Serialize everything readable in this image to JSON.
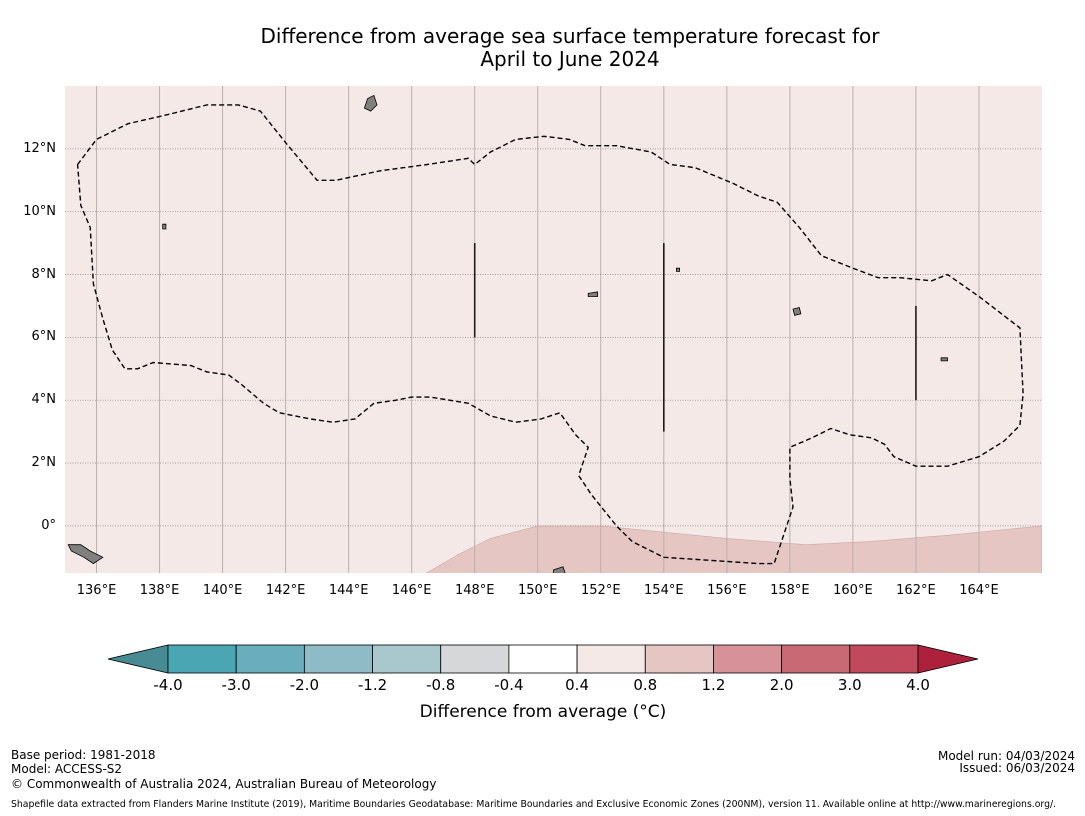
{
  "title_line1": "Difference from average sea surface temperature forecast for",
  "title_line2": "April to June 2024",
  "map": {
    "background_color": "#f5e9e8",
    "anomaly_band_color": "#e6c6c3",
    "land_color": "#808080",
    "lon_range": [
      135,
      166
    ],
    "lat_range": [
      -1.5,
      14
    ],
    "x_ticks": [
      {
        "lon": 136,
        "label": "136°E"
      },
      {
        "lon": 138,
        "label": "138°E"
      },
      {
        "lon": 140,
        "label": "140°E"
      },
      {
        "lon": 142,
        "label": "142°E"
      },
      {
        "lon": 144,
        "label": "144°E"
      },
      {
        "lon": 146,
        "label": "146°E"
      },
      {
        "lon": 148,
        "label": "148°E"
      },
      {
        "lon": 150,
        "label": "150°E"
      },
      {
        "lon": 152,
        "label": "152°E"
      },
      {
        "lon": 154,
        "label": "154°E"
      },
      {
        "lon": 156,
        "label": "156°E"
      },
      {
        "lon": 158,
        "label": "158°E"
      },
      {
        "lon": 160,
        "label": "160°E"
      },
      {
        "lon": 162,
        "label": "162°E"
      },
      {
        "lon": 164,
        "label": "164°E"
      }
    ],
    "y_ticks": [
      {
        "lat": 12,
        "label": "12°N"
      },
      {
        "lat": 10,
        "label": "10°N"
      },
      {
        "lat": 8,
        "label": "8°N"
      },
      {
        "lat": 6,
        "label": "6°N"
      },
      {
        "lat": 4,
        "label": "4°N"
      },
      {
        "lat": 2,
        "label": "2°N"
      },
      {
        "lat": 0,
        "label": "0°"
      }
    ],
    "eez_boundary_lonlat": [
      [
        135.4,
        11.5
      ],
      [
        136.0,
        12.3
      ],
      [
        137.0,
        12.8
      ],
      [
        138.3,
        13.1
      ],
      [
        139.5,
        13.4
      ],
      [
        140.5,
        13.4
      ],
      [
        141.2,
        13.2
      ],
      [
        142.0,
        12.2
      ],
      [
        143.0,
        11.0
      ],
      [
        143.6,
        11.0
      ],
      [
        145.0,
        11.3
      ],
      [
        146.5,
        11.5
      ],
      [
        147.8,
        11.7
      ],
      [
        148.0,
        11.5
      ],
      [
        148.5,
        11.9
      ],
      [
        149.3,
        12.3
      ],
      [
        150.2,
        12.4
      ],
      [
        151.0,
        12.3
      ],
      [
        151.5,
        12.1
      ],
      [
        152.5,
        12.1
      ],
      [
        153.6,
        11.9
      ],
      [
        154.2,
        11.5
      ],
      [
        155.0,
        11.4
      ],
      [
        156.2,
        10.9
      ],
      [
        157.0,
        10.5
      ],
      [
        157.6,
        10.3
      ],
      [
        158.3,
        9.5
      ],
      [
        159.0,
        8.6
      ],
      [
        160.0,
        8.2
      ],
      [
        160.8,
        7.9
      ],
      [
        161.5,
        7.9
      ],
      [
        162.5,
        7.8
      ],
      [
        163.0,
        8.0
      ],
      [
        164.0,
        7.3
      ],
      [
        165.3,
        6.3
      ],
      [
        165.4,
        4.2
      ],
      [
        165.3,
        3.2
      ],
      [
        164.8,
        2.7
      ],
      [
        164.0,
        2.2
      ],
      [
        163.0,
        1.9
      ],
      [
        162.0,
        1.9
      ],
      [
        161.3,
        2.2
      ],
      [
        161.0,
        2.6
      ],
      [
        160.6,
        2.8
      ],
      [
        159.9,
        2.9
      ],
      [
        159.3,
        3.1
      ],
      [
        158.7,
        2.8
      ],
      [
        158.0,
        2.5
      ],
      [
        158.0,
        1.5
      ],
      [
        158.1,
        0.6
      ],
      [
        157.5,
        -1.2
      ],
      [
        157.0,
        -1.2
      ],
      [
        155.5,
        -1.1
      ],
      [
        154.0,
        -1.0
      ],
      [
        153.0,
        -0.5
      ],
      [
        152.5,
        0.0
      ],
      [
        151.7,
        1.0
      ],
      [
        151.3,
        1.6
      ],
      [
        151.6,
        2.5
      ],
      [
        151.2,
        2.9
      ],
      [
        150.7,
        3.6
      ],
      [
        150.1,
        3.4
      ],
      [
        149.3,
        3.3
      ],
      [
        148.5,
        3.5
      ],
      [
        147.8,
        3.9
      ],
      [
        146.6,
        4.1
      ],
      [
        146.0,
        4.1
      ],
      [
        145.5,
        4.0
      ],
      [
        144.8,
        3.9
      ],
      [
        144.2,
        3.4
      ],
      [
        143.5,
        3.3
      ],
      [
        142.8,
        3.4
      ],
      [
        141.8,
        3.6
      ],
      [
        141.3,
        3.9
      ],
      [
        140.6,
        4.5
      ],
      [
        140.2,
        4.8
      ],
      [
        139.5,
        4.9
      ],
      [
        139.0,
        5.1
      ],
      [
        137.8,
        5.2
      ],
      [
        137.3,
        5.0
      ],
      [
        136.9,
        5.0
      ],
      [
        136.5,
        5.6
      ],
      [
        136.2,
        6.6
      ],
      [
        135.9,
        7.7
      ],
      [
        135.8,
        9.5
      ],
      [
        135.5,
        10.2
      ],
      [
        135.4,
        11.5
      ]
    ],
    "mark_lines_lonlat": [
      [
        [
          148.0,
          9.0
        ],
        [
          148.0,
          6.0
        ]
      ],
      [
        [
          154.0,
          9.0
        ],
        [
          154.0,
          3.0
        ]
      ],
      [
        [
          162.0,
          7.0
        ],
        [
          162.0,
          4.0
        ]
      ]
    ],
    "anomaly_band_lonlat": [
      [
        146.3,
        -1.6
      ],
      [
        147.5,
        -0.9
      ],
      [
        148.5,
        -0.4
      ],
      [
        150.0,
        0.0
      ],
      [
        151.0,
        0.0
      ],
      [
        152.0,
        0.0
      ],
      [
        154.0,
        -0.2
      ],
      [
        156.0,
        -0.4
      ],
      [
        158.5,
        -0.6
      ],
      [
        160.5,
        -0.5
      ],
      [
        163.0,
        -0.3
      ],
      [
        165.0,
        -0.1
      ],
      [
        166.0,
        0.0
      ],
      [
        166.0,
        -1.6
      ]
    ],
    "land_lonlat": [
      {
        "lonlat": [
          [
            135.1,
            -0.6
          ],
          [
            135.5,
            -0.6
          ],
          [
            135.8,
            -0.8
          ],
          [
            136.2,
            -1.0
          ],
          [
            135.9,
            -1.2
          ],
          [
            135.6,
            -1.0
          ],
          [
            135.2,
            -0.8
          ]
        ]
      },
      {
        "lonlat": [
          [
            150.5,
            -1.4
          ],
          [
            150.8,
            -1.3
          ],
          [
            150.9,
            -1.6
          ],
          [
            150.5,
            -1.6
          ]
        ]
      },
      {
        "lonlat": [
          [
            144.6,
            13.6
          ],
          [
            144.8,
            13.7
          ],
          [
            144.9,
            13.4
          ],
          [
            144.7,
            13.2
          ],
          [
            144.5,
            13.3
          ]
        ]
      },
      {
        "lonlat": [
          [
            158.1,
            6.9
          ],
          [
            158.3,
            6.95
          ],
          [
            158.35,
            6.75
          ],
          [
            158.15,
            6.7
          ]
        ]
      },
      {
        "lonlat": [
          [
            151.6,
            7.4
          ],
          [
            151.9,
            7.45
          ],
          [
            151.9,
            7.3
          ],
          [
            151.6,
            7.3
          ]
        ]
      },
      {
        "lonlat": [
          [
            138.1,
            9.6
          ],
          [
            138.2,
            9.6
          ],
          [
            138.2,
            9.45
          ],
          [
            138.1,
            9.45
          ]
        ]
      },
      {
        "lonlat": [
          [
            162.8,
            5.35
          ],
          [
            163.0,
            5.35
          ],
          [
            163.0,
            5.25
          ],
          [
            162.8,
            5.25
          ]
        ]
      },
      {
        "lonlat": [
          [
            154.4,
            8.2
          ],
          [
            154.5,
            8.2
          ],
          [
            154.5,
            8.1
          ],
          [
            154.4,
            8.1
          ]
        ]
      }
    ]
  },
  "colorbar": {
    "bins": [
      {
        "color": "#478c94"
      },
      {
        "color": "#4ba6b4"
      },
      {
        "color": "#6aadbc"
      },
      {
        "color": "#8fbbc6"
      },
      {
        "color": "#a9c8cd"
      },
      {
        "color": "#d5d7d8"
      },
      {
        "color": "#ffffff"
      },
      {
        "color": "#f5e9e8"
      },
      {
        "color": "#e6c6c3"
      },
      {
        "color": "#d79198"
      },
      {
        "color": "#c96973"
      },
      {
        "color": "#c04a5b"
      },
      {
        "color": "#ad213d"
      }
    ],
    "labels": [
      "-4.0",
      "-3.0",
      "-2.0",
      "-1.2",
      "-0.8",
      "-0.4",
      "0.4",
      "0.8",
      "1.2",
      "2.0",
      "3.0",
      "4.0"
    ],
    "title": "Difference from average (°C)"
  },
  "footer": {
    "base_period": "Base period: 1981-2018",
    "model": "Model: ACCESS-S2",
    "copyright": "© Commonwealth of Australia 2024, Australian Bureau of Meteorology",
    "shapefile": "Shapefile data extracted from Flanders Marine Institute (2019), Maritime Boundaries Geodatabase: Maritime Boundaries and Exclusive Economic Zones (200NM), version 11. Available online at http://www.marineregions.org/.",
    "model_run": "Model run: 04/03/2024",
    "issued": "Issued: 06/03/2024"
  }
}
